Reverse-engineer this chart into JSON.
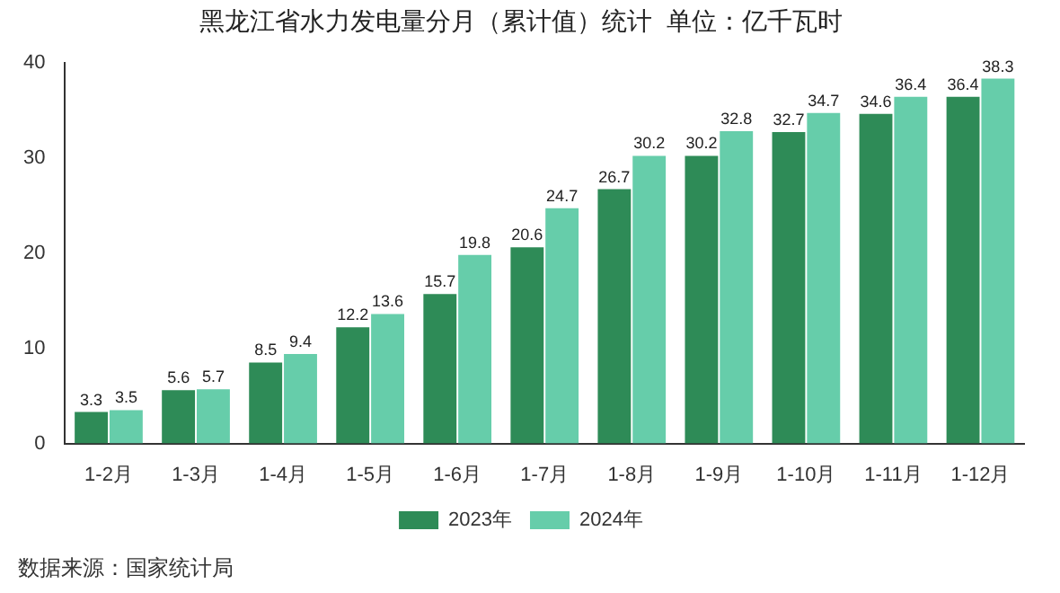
{
  "chart_data": {
    "type": "bar",
    "title": "黑龙江省水力发电量分月（累计值）统计  单位：亿千瓦时",
    "categories": [
      "1-2月",
      "1-3月",
      "1-4月",
      "1-5月",
      "1-6月",
      "1-7月",
      "1-8月",
      "1-9月",
      "1-10月",
      "1-11月",
      "1-12月"
    ],
    "series": [
      {
        "name": "2023年",
        "color": "#2e8b57",
        "values": [
          3.3,
          5.6,
          8.5,
          12.2,
          15.7,
          20.6,
          26.7,
          30.2,
          32.7,
          34.6,
          36.4
        ]
      },
      {
        "name": "2024年",
        "color": "#66cdaa",
        "values": [
          3.5,
          5.7,
          9.4,
          13.6,
          19.8,
          24.7,
          30.2,
          32.8,
          34.7,
          36.4,
          38.3
        ]
      }
    ],
    "ylim": [
      0,
      40
    ],
    "yticks": [
      0,
      10,
      20,
      30,
      40
    ],
    "grid": false,
    "legend": "bottom",
    "data_labels": true,
    "annotations": [
      "数据来源：国家统计局"
    ]
  }
}
